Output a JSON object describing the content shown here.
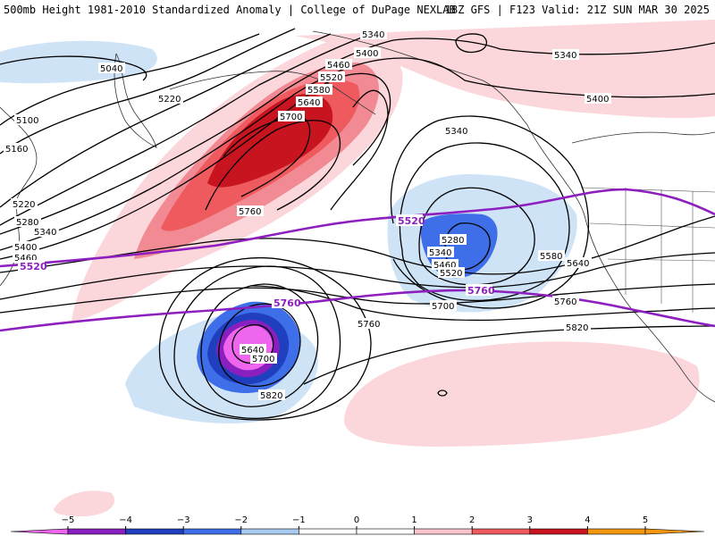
{
  "header": {
    "title_left": "500mb Height 1981-2010 Standardized Anomaly | College of DuPage NEXLAB",
    "title_right": "18Z GFS | F123 Valid: 21Z SUN MAR 30 2025"
  },
  "contour_labels": {
    "c5040": "5040",
    "c5100": "5100",
    "c5160": "5160",
    "c5220a": "5220",
    "c5220b": "5220",
    "c5280": "5280",
    "c5340a": "5340",
    "c5400a": "5400",
    "c5460a": "5460",
    "c5340top": "5340",
    "c5400top": "5400",
    "c5460top": "5460",
    "c5520top": "5520",
    "c5580top": "5580",
    "c5640top": "5640",
    "c5700top": "5700",
    "c5760a": "5760",
    "c5340r": "5340",
    "c5400r": "5400",
    "c5340m": "5340",
    "c5280m": "5280",
    "c5340m2": "5340",
    "c5460m": "5460",
    "c5520m": "5520",
    "c5580m": "5580",
    "c5640m": "5640",
    "c5700m": "5700",
    "c5760m": "5760",
    "c5760m2": "5760",
    "c5820a": "5820",
    "c5640s": "5640",
    "c5700s": "5700",
    "c5820s": "5820"
  },
  "highlight_labels": {
    "p5520a": "5520",
    "p5520b": "5520",
    "p5760a": "5760",
    "p5760b": "5760"
  },
  "colorbar": {
    "ticks": [
      "−5",
      "−4",
      "−3",
      "−2",
      "−1",
      "0",
      "1",
      "2",
      "3",
      "4",
      "5"
    ],
    "colors": [
      "#ee66ee",
      "#8a1fbf",
      "#1f3fbf",
      "#3f6fe8",
      "#a9cbf2",
      "#ffffff",
      "#ffffff",
      "#f9c4cc",
      "#ee5a5e",
      "#c8141f",
      "#f2950f"
    ]
  },
  "colors": {
    "contour": "#000000",
    "highlight": "#8e1fbf",
    "coast": "#333333"
  }
}
